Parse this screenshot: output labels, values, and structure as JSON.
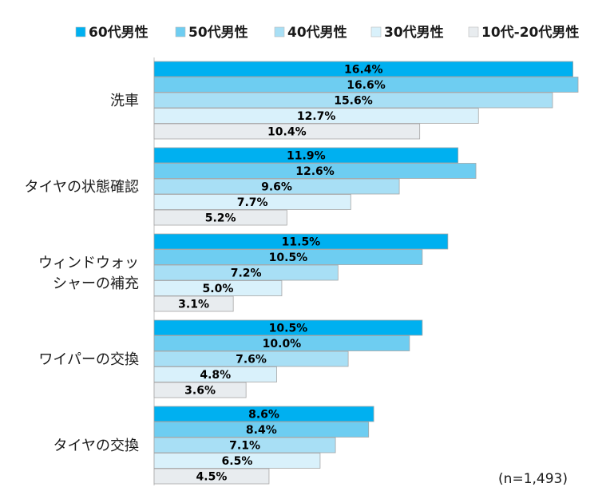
{
  "chart_data": {
    "type": "bar",
    "orientation": "horizontal",
    "title": "",
    "xlabel": "",
    "ylabel": "",
    "categories": [
      [
        "洗車"
      ],
      [
        "タイヤの状態確認"
      ],
      [
        "ウィンドウォッ",
        "シャーの補充"
      ],
      [
        "ワイパーの交換"
      ],
      [
        "タイヤの交換"
      ]
    ],
    "series": [
      {
        "name": "60代男性",
        "color": "#00b0f0",
        "values": [
          16.4,
          11.9,
          11.5,
          10.5,
          8.6
        ],
        "labels": [
          "16.4%",
          "11.9%",
          "11.5%",
          "10.5%",
          "8.6%"
        ]
      },
      {
        "name": "50代男性",
        "color": "#6ecdf1",
        "values": [
          16.6,
          12.6,
          10.5,
          10.0,
          8.4
        ],
        "labels": [
          "16.6%",
          "12.6%",
          "10.5%",
          "10.0%",
          "8.4%"
        ]
      },
      {
        "name": "40代男性",
        "color": "#a8dff5",
        "values": [
          15.6,
          9.6,
          7.2,
          7.6,
          7.1
        ],
        "labels": [
          "15.6%",
          "9.6%",
          "7.2%",
          "7.6%",
          "7.1%"
        ]
      },
      {
        "name": "30代男性",
        "color": "#d9f1fb",
        "values": [
          12.7,
          7.7,
          5.0,
          4.8,
          6.5
        ],
        "labels": [
          "12.7%",
          "7.7%",
          "5.0%",
          "4.8%",
          "6.5%"
        ]
      },
      {
        "name": "10代-20代男性",
        "color": "#e8ecef",
        "values": [
          10.4,
          5.2,
          3.1,
          3.6,
          4.5
        ],
        "labels": [
          "10.4%",
          "5.2%",
          "3.1%",
          "3.6%",
          "4.5%"
        ]
      }
    ],
    "xlim": [
      0,
      16.6
    ],
    "grid": false,
    "legend": "top",
    "annotation": "(n=1,493)"
  }
}
